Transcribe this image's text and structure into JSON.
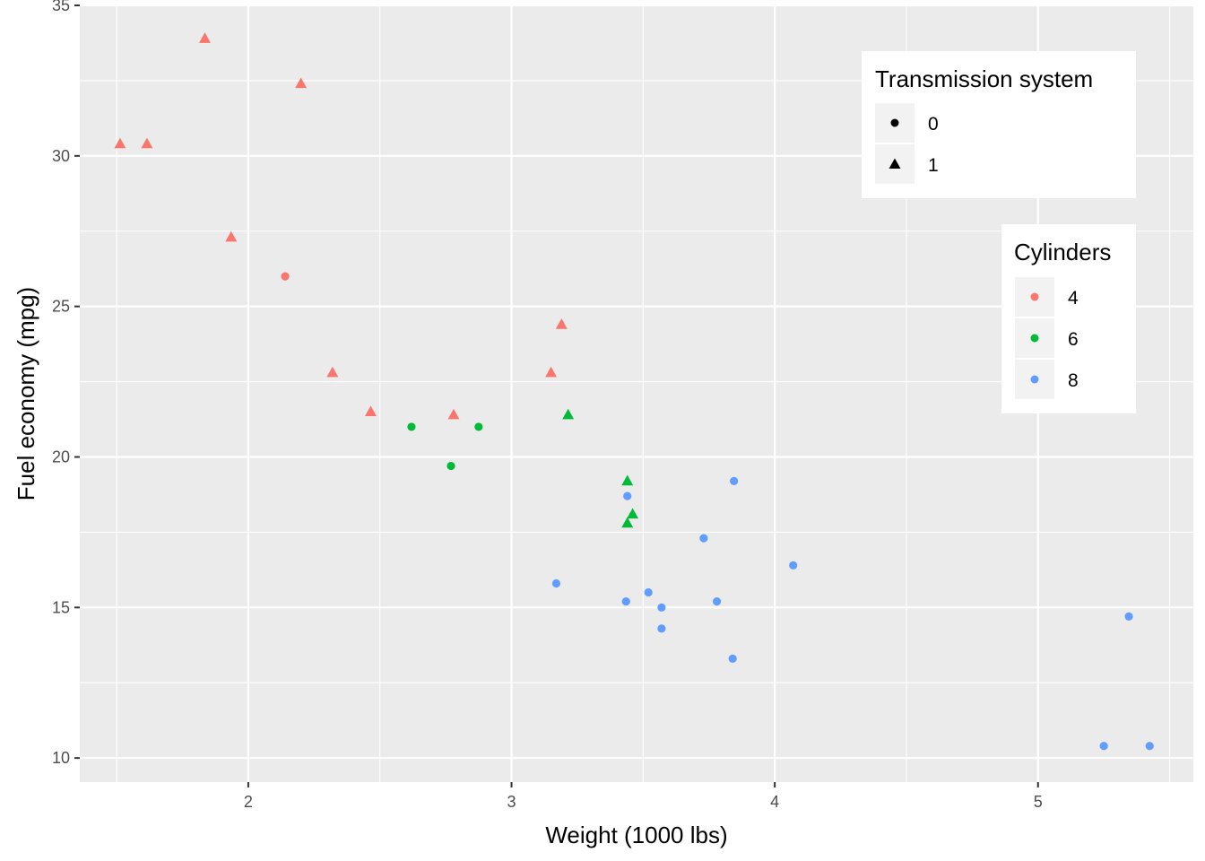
{
  "chart_data": {
    "type": "scatter",
    "title": "",
    "xlabel": "Weight (1000 lbs)",
    "ylabel": "Fuel economy (mpg)",
    "xlim": [
      1.36,
      5.59
    ],
    "ylim": [
      9.2,
      35.0
    ],
    "xticks": [
      2,
      3,
      4,
      5
    ],
    "yticks": [
      10,
      15,
      20,
      25,
      30,
      35
    ],
    "grid": true,
    "colors": {
      "4": "#F8766D",
      "6": "#00BA38",
      "8": "#619CFF"
    },
    "points": [
      {
        "x": 1.513,
        "y": 30.4,
        "cyl": "4",
        "am": "1"
      },
      {
        "x": 1.615,
        "y": 30.4,
        "cyl": "4",
        "am": "1"
      },
      {
        "x": 1.835,
        "y": 33.9,
        "cyl": "4",
        "am": "1"
      },
      {
        "x": 1.935,
        "y": 27.3,
        "cyl": "4",
        "am": "1"
      },
      {
        "x": 2.14,
        "y": 26.0,
        "cyl": "4",
        "am": "0"
      },
      {
        "x": 2.2,
        "y": 32.4,
        "cyl": "4",
        "am": "1"
      },
      {
        "x": 2.32,
        "y": 22.8,
        "cyl": "4",
        "am": "1"
      },
      {
        "x": 2.465,
        "y": 21.5,
        "cyl": "4",
        "am": "1"
      },
      {
        "x": 2.62,
        "y": 21.0,
        "cyl": "6",
        "am": "0"
      },
      {
        "x": 2.77,
        "y": 19.7,
        "cyl": "6",
        "am": "0"
      },
      {
        "x": 2.78,
        "y": 21.4,
        "cyl": "4",
        "am": "1"
      },
      {
        "x": 2.875,
        "y": 21.0,
        "cyl": "6",
        "am": "0"
      },
      {
        "x": 3.15,
        "y": 22.8,
        "cyl": "4",
        "am": "1"
      },
      {
        "x": 3.17,
        "y": 15.8,
        "cyl": "8",
        "am": "0"
      },
      {
        "x": 3.19,
        "y": 24.4,
        "cyl": "4",
        "am": "1"
      },
      {
        "x": 3.215,
        "y": 21.4,
        "cyl": "6",
        "am": "1"
      },
      {
        "x": 3.435,
        "y": 15.2,
        "cyl": "8",
        "am": "0"
      },
      {
        "x": 3.44,
        "y": 18.7,
        "cyl": "8",
        "am": "0"
      },
      {
        "x": 3.44,
        "y": 19.2,
        "cyl": "6",
        "am": "1"
      },
      {
        "x": 3.44,
        "y": 17.8,
        "cyl": "6",
        "am": "1"
      },
      {
        "x": 3.46,
        "y": 18.1,
        "cyl": "6",
        "am": "1"
      },
      {
        "x": 3.52,
        "y": 15.5,
        "cyl": "8",
        "am": "0"
      },
      {
        "x": 3.57,
        "y": 14.3,
        "cyl": "8",
        "am": "0"
      },
      {
        "x": 3.57,
        "y": 15.0,
        "cyl": "8",
        "am": "0"
      },
      {
        "x": 3.73,
        "y": 17.3,
        "cyl": "8",
        "am": "0"
      },
      {
        "x": 3.78,
        "y": 15.2,
        "cyl": "8",
        "am": "0"
      },
      {
        "x": 3.84,
        "y": 13.3,
        "cyl": "8",
        "am": "0"
      },
      {
        "x": 3.845,
        "y": 19.2,
        "cyl": "8",
        "am": "0"
      },
      {
        "x": 4.07,
        "y": 16.4,
        "cyl": "8",
        "am": "0"
      },
      {
        "x": 5.25,
        "y": 10.4,
        "cyl": "8",
        "am": "0"
      },
      {
        "x": 5.345,
        "y": 14.7,
        "cyl": "8",
        "am": "0"
      },
      {
        "x": 5.424,
        "y": 10.4,
        "cyl": "8",
        "am": "0"
      }
    ]
  },
  "legends": {
    "transmission": {
      "title": "Transmission system",
      "entries": [
        {
          "label": "0",
          "shape": "circle"
        },
        {
          "label": "1",
          "shape": "triangle"
        }
      ]
    },
    "cylinders": {
      "title": "Cylinders",
      "entries": [
        {
          "label": "4",
          "color": "#F8766D"
        },
        {
          "label": "6",
          "color": "#00BA38"
        },
        {
          "label": "8",
          "color": "#619CFF"
        }
      ]
    }
  }
}
